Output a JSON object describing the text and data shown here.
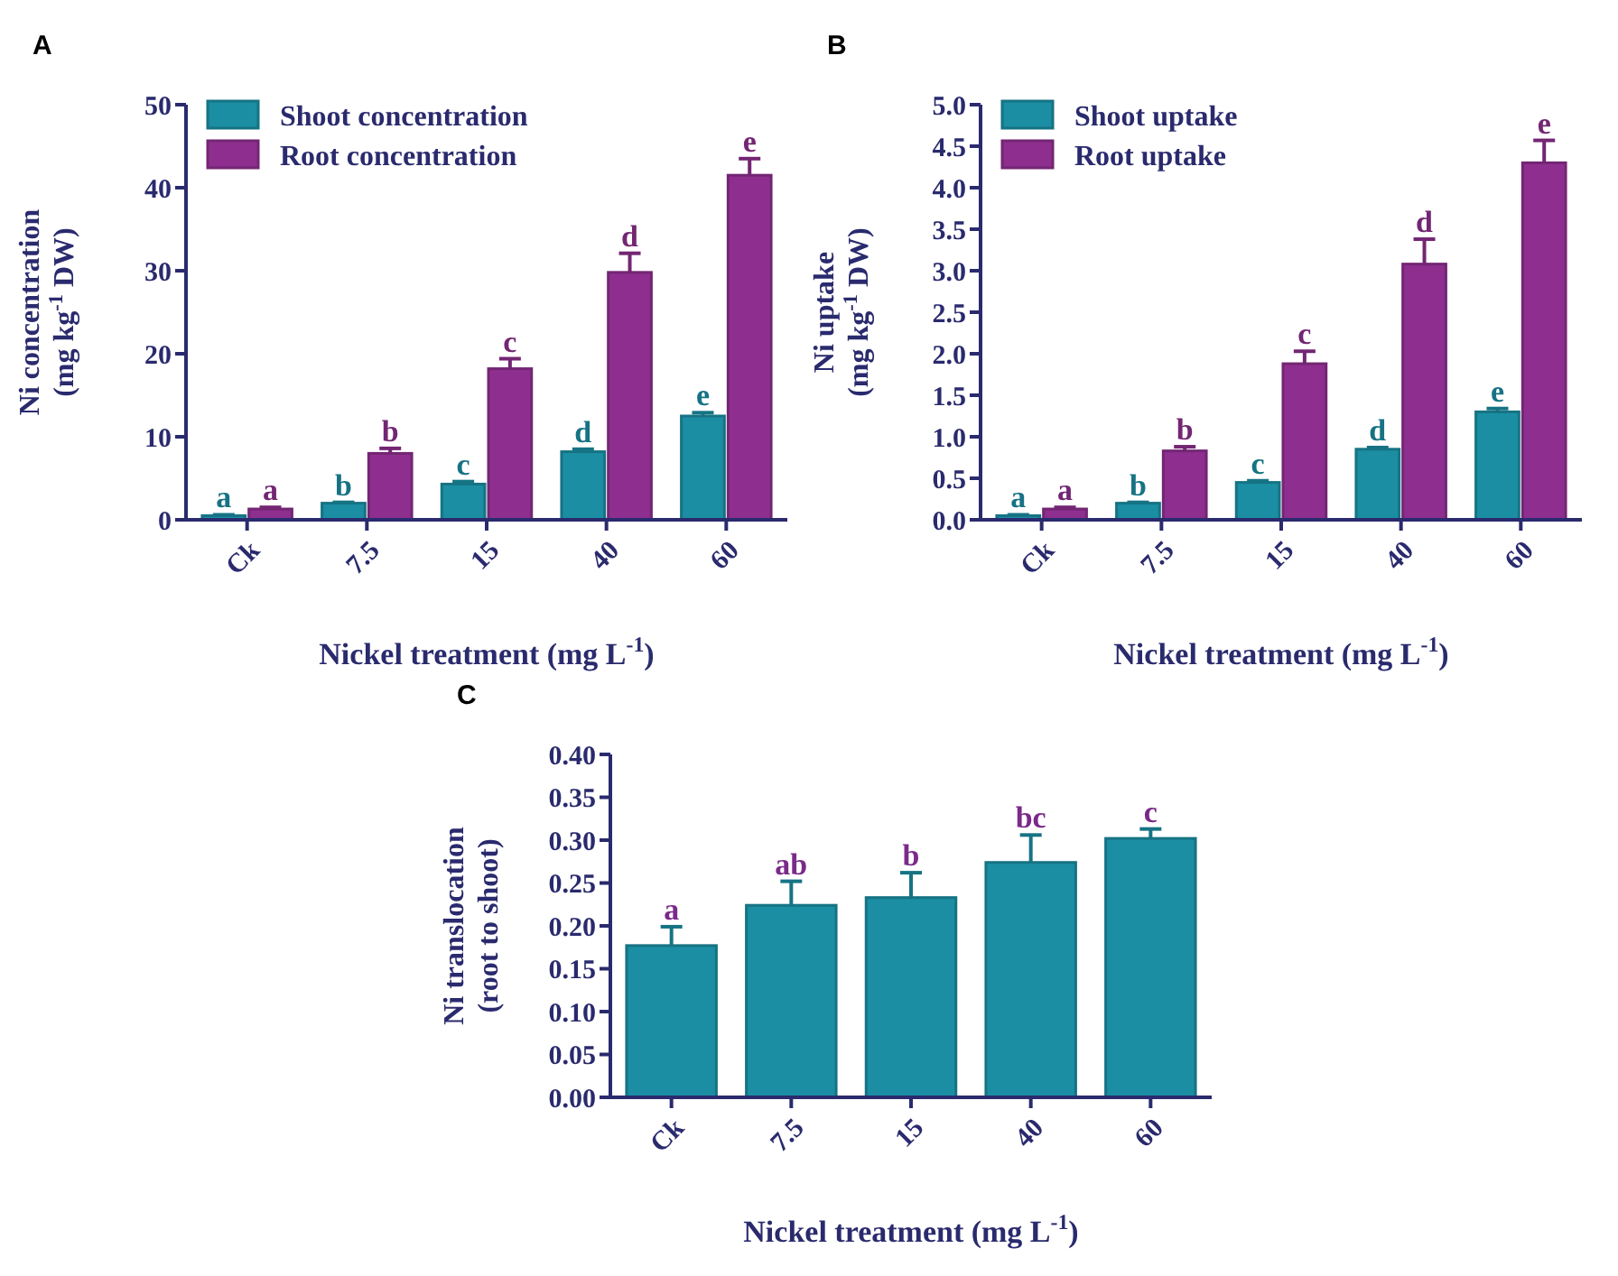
{
  "chart_data": [
    {
      "type": "bar",
      "title": "A",
      "ylabel": "Ni concentration\n(mg kg$^{-1}$ DW)",
      "xlabel": "Nickel treatment (mg L$^{-1}$)",
      "categories": [
        "Ck",
        "7.5",
        "15",
        "40",
        "60"
      ],
      "legend": "top left",
      "ylim": [
        0,
        50
      ],
      "yticks": [
        0,
        10,
        20,
        30,
        40,
        50
      ],
      "series": [
        {
          "name": "Shoot concentration",
          "color": "#1b8ea3",
          "values": [
            0.5,
            2.0,
            4.3,
            8.2,
            12.5
          ],
          "errors": [
            0.1,
            0.1,
            0.3,
            0.3,
            0.4
          ],
          "value_labels": [
            "a",
            "b",
            "c",
            "d",
            "e"
          ]
        },
        {
          "name": "Root concentration",
          "color": "#8e2f8f",
          "values": [
            1.3,
            8.0,
            18.2,
            29.8,
            41.5
          ],
          "errors": [
            0.2,
            0.6,
            1.2,
            2.3,
            2.0
          ],
          "value_labels": [
            "a",
            "b",
            "c",
            "d",
            "e"
          ]
        }
      ]
    },
    {
      "type": "bar",
      "title": "B",
      "ylabel": "Ni uptake\n(mg kg$^{-1}$ DW)",
      "xlabel": "Nickel treatment (mg L$^{-1}$)",
      "categories": [
        "Ck",
        "7.5",
        "15",
        "40",
        "60"
      ],
      "legend": "top left",
      "ylim": [
        0,
        5
      ],
      "yticks": [
        {
          "value": 0,
          "label": "0.0"
        },
        0.5,
        {
          "value": 1,
          "label": "1.0"
        },
        1.5,
        {
          "value": 2,
          "label": "2.0"
        },
        2.5,
        {
          "value": 3,
          "label": "3.0"
        },
        3.5,
        {
          "value": 4,
          "label": "4.0"
        },
        4.5,
        {
          "value": 5,
          "label": "5.0"
        }
      ],
      "series": [
        {
          "name": "Shoot uptake",
          "color": "#1b8ea3",
          "values": [
            0.05,
            0.2,
            0.45,
            0.85,
            1.3
          ],
          "errors": [
            0.01,
            0.01,
            0.02,
            0.02,
            0.04
          ],
          "value_labels": [
            "a",
            "b",
            "c",
            "d",
            "e"
          ]
        },
        {
          "name": "Root uptake",
          "color": "#8e2f8f",
          "values": [
            0.13,
            0.83,
            1.88,
            3.08,
            4.3
          ],
          "errors": [
            0.02,
            0.05,
            0.15,
            0.3,
            0.27
          ],
          "value_labels": [
            "a",
            "b",
            "c",
            "d",
            "e"
          ]
        }
      ]
    },
    {
      "type": "bar",
      "title": "C",
      "ylabel": "Ni translocation\n(root to shoot)",
      "xlabel": "Nickel treatment (mg L$^{-1}$)",
      "categories": [
        "Ck",
        "7.5",
        "15",
        "40",
        "60"
      ],
      "ylim": [
        0,
        0.4
      ],
      "yticks": [
        {
          "value": 0,
          "label": "0.00"
        },
        0.05,
        {
          "value": 0.1,
          "label": "0.10"
        },
        0.15,
        {
          "value": 0.2,
          "label": "0.20"
        },
        0.25,
        {
          "value": 0.3,
          "label": "0.30"
        },
        0.35,
        {
          "value": 0.4,
          "label": "0.40"
        }
      ],
      "color": "#1b8ea3",
      "values": [
        0.177,
        0.224,
        0.233,
        0.274,
        0.302
      ],
      "errors": [
        0.022,
        0.028,
        0.029,
        0.032,
        0.011
      ],
      "value_labels": [
        "a",
        "ab",
        "b",
        "bc",
        "c"
      ]
    }
  ]
}
